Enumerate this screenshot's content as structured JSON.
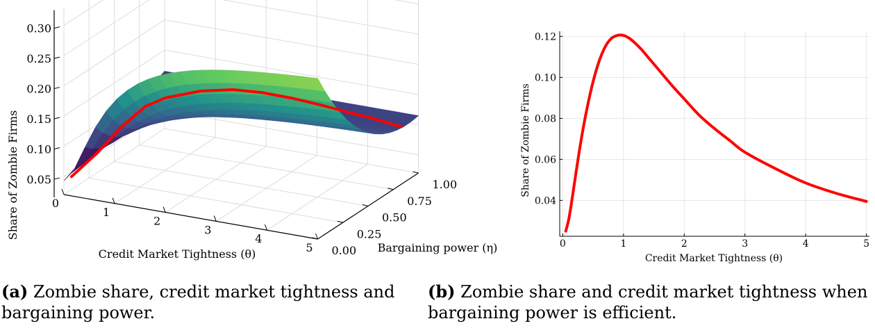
{
  "chart_data": [
    {
      "type": "surface",
      "zlabel": "Share of Zombie Firms",
      "xlabel": "Credit Market Tightness (θ)",
      "ylabel": "Bargaining power (η)",
      "x_ticks": [
        "0",
        "1",
        "2",
        "3",
        "4",
        "5"
      ],
      "y_ticks": [
        "0.00",
        "0.25",
        "0.50",
        "0.75",
        "1.00"
      ],
      "z_ticks": [
        "0.05",
        "0.10",
        "0.15",
        "0.20",
        "0.25",
        "0.30"
      ],
      "xlim": [
        0,
        5
      ],
      "ylim": [
        0,
        1
      ],
      "zlim": [
        0.02,
        0.33
      ],
      "colormap": "viridis",
      "highlight_color": "#ff0000",
      "efficient_curve": {
        "x": [
          0.05,
          0.25,
          0.5,
          0.75,
          1.0,
          1.5,
          2.0,
          2.5,
          3.0,
          3.5,
          4.0,
          4.5,
          5.0
        ],
        "y": [
          0.05,
          0.2,
          0.33,
          0.43,
          0.5,
          0.6,
          0.67,
          0.71,
          0.75,
          0.78,
          0.8,
          0.82,
          0.83
        ],
        "z": [
          0.045,
          0.07,
          0.105,
          0.13,
          0.14,
          0.148,
          0.15,
          0.148,
          0.142,
          0.135,
          0.128,
          0.122,
          0.115
        ]
      }
    },
    {
      "type": "line",
      "xlabel": "Credit Market Tightness (θ)",
      "ylabel": "Share of Zombie Firms",
      "x_ticks": [
        "0",
        "1",
        "2",
        "3",
        "4",
        "5"
      ],
      "y_ticks": [
        "0.04",
        "0.06",
        "0.08",
        "0.10",
        "0.12"
      ],
      "xlim": [
        -0.05,
        5.05
      ],
      "ylim": [
        0.0225,
        0.1225
      ],
      "grid": true,
      "series": [
        {
          "color": "#ff0000",
          "x": [
            0.05,
            0.1,
            0.15,
            0.2,
            0.3,
            0.4,
            0.5,
            0.6,
            0.7,
            0.8,
            0.9,
            1.0,
            1.1,
            1.2,
            1.3,
            1.4,
            1.6,
            1.8,
            2.0,
            2.25,
            2.5,
            2.75,
            3.0,
            3.5,
            4.0,
            4.5,
            5.0
          ],
          "y": [
            0.025,
            0.031,
            0.04,
            0.05,
            0.069,
            0.085,
            0.098,
            0.108,
            0.115,
            0.119,
            0.1205,
            0.1205,
            0.119,
            0.1165,
            0.1135,
            0.11,
            0.103,
            0.096,
            0.0895,
            0.0815,
            0.075,
            0.0692,
            0.0635,
            0.0555,
            0.0485,
            0.0435,
            0.0395
          ]
        }
      ]
    }
  ],
  "captions": {
    "a_tag": "(a)",
    "a_text": "Zombie share, credit market tightness and bargaining power.",
    "b_tag": "(b)",
    "b_text": "Zombie share and credit market tightness when bargaining power is efficient."
  }
}
